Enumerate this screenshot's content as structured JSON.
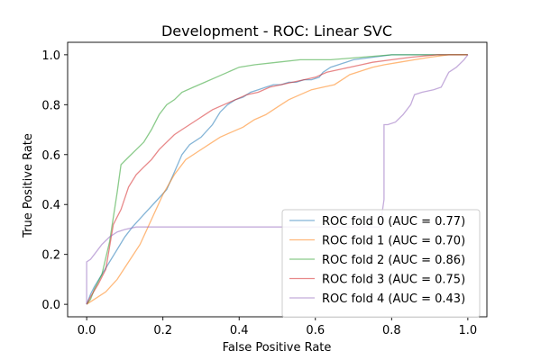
{
  "chart_data": {
    "type": "line",
    "title": "Development - ROC: Linear SVC",
    "xlabel": "False Positive Rate",
    "ylabel": "True Positive Rate",
    "xlim": [
      -0.05,
      1.05
    ],
    "ylim": [
      -0.05,
      1.05
    ],
    "xticks": [
      "0.0",
      "0.2",
      "0.4",
      "0.6",
      "0.8",
      "1.0"
    ],
    "yticks": [
      "0.0",
      "0.2",
      "0.4",
      "0.6",
      "0.8",
      "1.0"
    ],
    "grid": false,
    "legend_position": "lower-right",
    "series": [
      {
        "name": "ROC fold 0 (AUC = 0.77)",
        "color": "#1f77b4",
        "points": [
          [
            0,
            0
          ],
          [
            0.01,
            0.04
          ],
          [
            0.02,
            0.07
          ],
          [
            0.04,
            0.12
          ],
          [
            0.06,
            0.17
          ],
          [
            0.08,
            0.22
          ],
          [
            0.1,
            0.27
          ],
          [
            0.12,
            0.31
          ],
          [
            0.15,
            0.36
          ],
          [
            0.18,
            0.41
          ],
          [
            0.21,
            0.46
          ],
          [
            0.23,
            0.53
          ],
          [
            0.25,
            0.6
          ],
          [
            0.27,
            0.64
          ],
          [
            0.3,
            0.67
          ],
          [
            0.33,
            0.72
          ],
          [
            0.35,
            0.77
          ],
          [
            0.37,
            0.8
          ],
          [
            0.39,
            0.82
          ],
          [
            0.41,
            0.83
          ],
          [
            0.43,
            0.85
          ],
          [
            0.45,
            0.86
          ],
          [
            0.47,
            0.87
          ],
          [
            0.49,
            0.88
          ],
          [
            0.51,
            0.88
          ],
          [
            0.53,
            0.89
          ],
          [
            0.55,
            0.89
          ],
          [
            0.57,
            0.9
          ],
          [
            0.59,
            0.9
          ],
          [
            0.61,
            0.91
          ],
          [
            0.62,
            0.93
          ],
          [
            0.64,
            0.95
          ],
          [
            0.66,
            0.96
          ],
          [
            0.68,
            0.97
          ],
          [
            0.7,
            0.98
          ],
          [
            0.75,
            0.99
          ],
          [
            0.8,
            1.0
          ],
          [
            1.0,
            1.0
          ]
        ]
      },
      {
        "name": "ROC fold 1 (AUC = 0.70)",
        "color": "#ff7f0e",
        "points": [
          [
            0,
            0
          ],
          [
            0.02,
            0.02
          ],
          [
            0.05,
            0.05
          ],
          [
            0.08,
            0.1
          ],
          [
            0.11,
            0.17
          ],
          [
            0.14,
            0.24
          ],
          [
            0.17,
            0.34
          ],
          [
            0.2,
            0.44
          ],
          [
            0.23,
            0.52
          ],
          [
            0.26,
            0.58
          ],
          [
            0.29,
            0.61
          ],
          [
            0.32,
            0.64
          ],
          [
            0.35,
            0.67
          ],
          [
            0.38,
            0.69
          ],
          [
            0.41,
            0.71
          ],
          [
            0.44,
            0.74
          ],
          [
            0.47,
            0.76
          ],
          [
            0.5,
            0.79
          ],
          [
            0.53,
            0.82
          ],
          [
            0.56,
            0.84
          ],
          [
            0.59,
            0.86
          ],
          [
            0.62,
            0.87
          ],
          [
            0.65,
            0.88
          ],
          [
            0.67,
            0.9
          ],
          [
            0.69,
            0.92
          ],
          [
            0.71,
            0.93
          ],
          [
            0.73,
            0.94
          ],
          [
            0.75,
            0.95
          ],
          [
            0.78,
            0.96
          ],
          [
            0.82,
            0.97
          ],
          [
            0.86,
            0.98
          ],
          [
            0.9,
            0.99
          ],
          [
            0.95,
            1.0
          ],
          [
            1.0,
            1.0
          ]
        ]
      },
      {
        "name": "ROC fold 2 (AUC = 0.86)",
        "color": "#2ca02c",
        "points": [
          [
            0,
            0
          ],
          [
            0.01,
            0.02
          ],
          [
            0.02,
            0.06
          ],
          [
            0.04,
            0.12
          ],
          [
            0.06,
            0.25
          ],
          [
            0.08,
            0.45
          ],
          [
            0.09,
            0.56
          ],
          [
            0.11,
            0.59
          ],
          [
            0.13,
            0.62
          ],
          [
            0.15,
            0.65
          ],
          [
            0.17,
            0.7
          ],
          [
            0.19,
            0.76
          ],
          [
            0.21,
            0.8
          ],
          [
            0.23,
            0.82
          ],
          [
            0.25,
            0.85
          ],
          [
            0.28,
            0.87
          ],
          [
            0.31,
            0.89
          ],
          [
            0.34,
            0.91
          ],
          [
            0.37,
            0.93
          ],
          [
            0.4,
            0.95
          ],
          [
            0.44,
            0.96
          ],
          [
            0.5,
            0.97
          ],
          [
            0.56,
            0.98
          ],
          [
            0.64,
            0.98
          ],
          [
            0.72,
            0.99
          ],
          [
            0.8,
            1.0
          ],
          [
            1.0,
            1.0
          ]
        ]
      },
      {
        "name": "ROC fold 3 (AUC = 0.75)",
        "color": "#d62728",
        "points": [
          [
            0,
            0
          ],
          [
            0.01,
            0.03
          ],
          [
            0.03,
            0.08
          ],
          [
            0.05,
            0.14
          ],
          [
            0.07,
            0.32
          ],
          [
            0.09,
            0.38
          ],
          [
            0.11,
            0.47
          ],
          [
            0.13,
            0.52
          ],
          [
            0.15,
            0.55
          ],
          [
            0.17,
            0.58
          ],
          [
            0.19,
            0.62
          ],
          [
            0.21,
            0.65
          ],
          [
            0.23,
            0.68
          ],
          [
            0.25,
            0.7
          ],
          [
            0.27,
            0.72
          ],
          [
            0.29,
            0.74
          ],
          [
            0.31,
            0.76
          ],
          [
            0.33,
            0.78
          ],
          [
            0.36,
            0.8
          ],
          [
            0.39,
            0.82
          ],
          [
            0.42,
            0.84
          ],
          [
            0.45,
            0.85
          ],
          [
            0.48,
            0.87
          ],
          [
            0.51,
            0.88
          ],
          [
            0.54,
            0.89
          ],
          [
            0.57,
            0.9
          ],
          [
            0.6,
            0.91
          ],
          [
            0.63,
            0.93
          ],
          [
            0.66,
            0.94
          ],
          [
            0.69,
            0.95
          ],
          [
            0.72,
            0.96
          ],
          [
            0.75,
            0.97
          ],
          [
            0.8,
            0.98
          ],
          [
            0.85,
            0.99
          ],
          [
            0.92,
            1.0
          ],
          [
            1.0,
            1.0
          ]
        ]
      },
      {
        "name": "ROC fold 4 (AUC = 0.43)",
        "color": "#9467bd",
        "points": [
          [
            0,
            0
          ],
          [
            0,
            0.17
          ],
          [
            0.01,
            0.18
          ],
          [
            0.02,
            0.2
          ],
          [
            0.04,
            0.24
          ],
          [
            0.06,
            0.27
          ],
          [
            0.08,
            0.29
          ],
          [
            0.1,
            0.3
          ],
          [
            0.13,
            0.31
          ],
          [
            0.2,
            0.31
          ],
          [
            0.4,
            0.31
          ],
          [
            0.6,
            0.31
          ],
          [
            0.77,
            0.31
          ],
          [
            0.78,
            0.42
          ],
          [
            0.78,
            0.72
          ],
          [
            0.79,
            0.72
          ],
          [
            0.81,
            0.73
          ],
          [
            0.83,
            0.76
          ],
          [
            0.85,
            0.8
          ],
          [
            0.86,
            0.84
          ],
          [
            0.88,
            0.85
          ],
          [
            0.91,
            0.86
          ],
          [
            0.93,
            0.87
          ],
          [
            0.94,
            0.9
          ],
          [
            0.95,
            0.93
          ],
          [
            0.97,
            0.95
          ],
          [
            0.99,
            0.98
          ],
          [
            1.0,
            1.0
          ]
        ]
      }
    ]
  }
}
